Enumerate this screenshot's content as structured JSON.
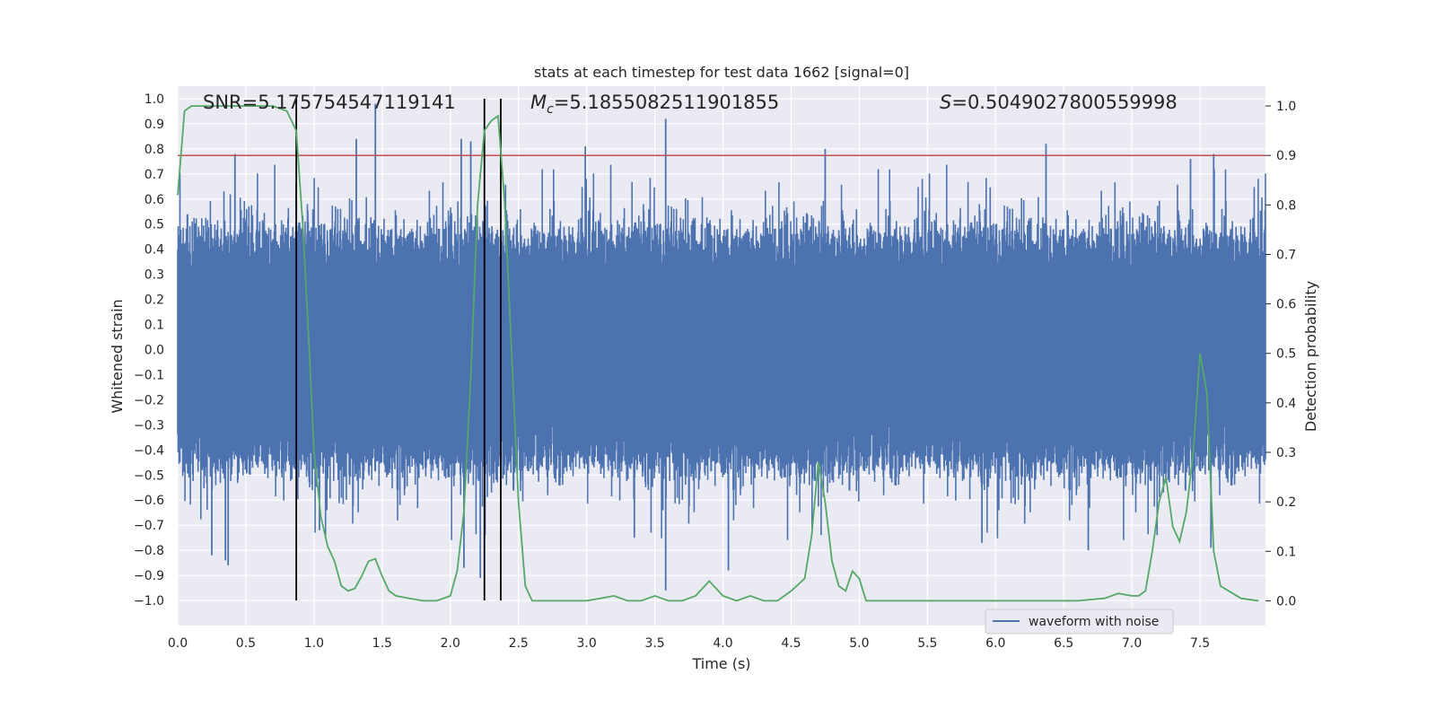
{
  "chart_data": {
    "type": "line",
    "title": "stats at each timestep for test data 1662 [signal=0]",
    "xlabel": "Time (s)",
    "ylabel_left": "Whitened strain",
    "ylabel_right": "Detection probability",
    "xlim": [
      0.0,
      7.98
    ],
    "ylim_left": [
      -1.1,
      1.05
    ],
    "ylim_right": [
      -0.05,
      1.04
    ],
    "x_ticks": [
      0.0,
      0.5,
      1.0,
      1.5,
      2.0,
      2.5,
      3.0,
      3.5,
      4.0,
      4.5,
      5.0,
      5.5,
      6.0,
      6.5,
      7.0,
      7.5
    ],
    "x_tick_labels": [
      "0.0",
      "0.5",
      "1.0",
      "1.5",
      "2.0",
      "2.5",
      "3.0",
      "3.5",
      "4.0",
      "4.5",
      "5.0",
      "5.5",
      "6.0",
      "6.5",
      "7.0",
      "7.5"
    ],
    "y_left_ticks": [
      1.0,
      0.9,
      0.8,
      0.7,
      0.6,
      0.5,
      0.4,
      0.3,
      0.2,
      0.1,
      0.0,
      -0.1,
      -0.2,
      -0.3,
      -0.4,
      -0.5,
      -0.6,
      -0.7,
      -0.8,
      -0.9,
      -1.0
    ],
    "y_left_tick_labels": [
      "1.0",
      "0.9",
      "0.8",
      "0.7",
      "0.6",
      "0.5",
      "0.4",
      "0.3",
      "0.2",
      "0.1",
      "0.0",
      "−0.1",
      "−0.2",
      "−0.3",
      "−0.4",
      "−0.5",
      "−0.6",
      "−0.7",
      "−0.8",
      "−0.9",
      "−1.0"
    ],
    "y_right_ticks": [
      1.0,
      0.9,
      0.8,
      0.7,
      0.6,
      0.5,
      0.4,
      0.3,
      0.2,
      0.1,
      0.0
    ],
    "y_right_tick_labels": [
      "1.0",
      "0.9",
      "0.8",
      "0.7",
      "0.6",
      "0.5",
      "0.4",
      "0.3",
      "0.2",
      "0.1",
      "0.0"
    ],
    "annotations": {
      "snr": "SNR=5.175754547119141",
      "mc_symbol": "M",
      "mc_subscript": "c",
      "mc_value": "=5.1855082511901855",
      "s_symbol": "S",
      "s_value": "=0.5049027800559998"
    },
    "threshold": {
      "axis": "right",
      "value": 0.9
    },
    "vertical_markers": {
      "axis": "left",
      "x": [
        0.87,
        2.25,
        2.37
      ],
      "y_range": [
        -1.0,
        1.0
      ]
    },
    "series": [
      {
        "name": "waveform with noise",
        "axis": "left",
        "kind": "noise",
        "envelope": {
          "typical": 0.42,
          "max_peak": 0.98,
          "min_peak": -0.96
        },
        "spikes": [
          {
            "x": 1.45,
            "y": 0.98
          },
          {
            "x": 3.58,
            "y": 0.92
          },
          {
            "x": 3.58,
            "y": -0.96
          },
          {
            "x": 1.31,
            "y": 0.84
          },
          {
            "x": 6.37,
            "y": 0.82
          },
          {
            "x": 2.08,
            "y": 0.84
          },
          {
            "x": 2.15,
            "y": 0.83
          },
          {
            "x": 2.99,
            "y": 0.81
          },
          {
            "x": 4.75,
            "y": 0.8
          },
          {
            "x": 0.42,
            "y": 0.78
          },
          {
            "x": 7.43,
            "y": 0.76
          },
          {
            "x": 7.6,
            "y": 0.78
          },
          {
            "x": 0.25,
            "y": -0.82
          },
          {
            "x": 0.35,
            "y": -0.84
          },
          {
            "x": 0.37,
            "y": -0.86
          },
          {
            "x": 2.1,
            "y": -0.87
          },
          {
            "x": 2.22,
            "y": -0.91
          },
          {
            "x": 4.04,
            "y": -0.88
          },
          {
            "x": 6.68,
            "y": -0.8
          },
          {
            "x": 7.58,
            "y": -0.79
          },
          {
            "x": 5.9,
            "y": -0.77
          },
          {
            "x": 3.35,
            "y": -0.75
          },
          {
            "x": 1.04,
            "y": -0.72
          }
        ],
        "color": "#4c72b0"
      },
      {
        "name": "detection probability",
        "axis": "right",
        "color": "#55a868",
        "x": [
          0.0,
          0.05,
          0.1,
          0.2,
          0.3,
          0.4,
          0.5,
          0.6,
          0.7,
          0.8,
          0.87,
          0.92,
          0.97,
          1.0,
          1.05,
          1.1,
          1.15,
          1.2,
          1.25,
          1.3,
          1.35,
          1.4,
          1.45,
          1.5,
          1.55,
          1.6,
          1.7,
          1.8,
          1.9,
          2.0,
          2.05,
          2.1,
          2.15,
          2.2,
          2.25,
          2.3,
          2.35,
          2.4,
          2.45,
          2.5,
          2.55,
          2.6,
          2.7,
          2.8,
          2.9,
          3.0,
          3.1,
          3.2,
          3.3,
          3.4,
          3.5,
          3.6,
          3.7,
          3.8,
          3.9,
          4.0,
          4.1,
          4.2,
          4.3,
          4.4,
          4.5,
          4.6,
          4.65,
          4.7,
          4.75,
          4.8,
          4.85,
          4.9,
          4.95,
          5.0,
          5.05,
          5.2,
          5.4,
          5.6,
          5.8,
          6.0,
          6.2,
          6.4,
          6.6,
          6.8,
          6.9,
          7.0,
          7.05,
          7.1,
          7.15,
          7.2,
          7.25,
          7.3,
          7.35,
          7.4,
          7.45,
          7.5,
          7.55,
          7.6,
          7.65,
          7.8,
          7.93
        ],
        "values": [
          0.82,
          0.99,
          1.0,
          1.0,
          1.0,
          1.0,
          1.0,
          1.0,
          1.0,
          0.99,
          0.95,
          0.75,
          0.48,
          0.3,
          0.17,
          0.11,
          0.08,
          0.03,
          0.02,
          0.025,
          0.05,
          0.08,
          0.085,
          0.05,
          0.02,
          0.01,
          0.005,
          0.0,
          0.0,
          0.01,
          0.06,
          0.18,
          0.45,
          0.8,
          0.95,
          0.97,
          0.98,
          0.8,
          0.5,
          0.2,
          0.03,
          0.0,
          0.0,
          0.0,
          0.0,
          0.0,
          0.005,
          0.01,
          0.0,
          0.0,
          0.01,
          0.0,
          0.0,
          0.01,
          0.04,
          0.01,
          0.0,
          0.01,
          0.0,
          0.0,
          0.02,
          0.045,
          0.13,
          0.28,
          0.2,
          0.08,
          0.03,
          0.02,
          0.06,
          0.045,
          0.0,
          0.0,
          0.0,
          0.0,
          0.0,
          0.0,
          0.0,
          0.0,
          0.0,
          0.005,
          0.015,
          0.01,
          0.01,
          0.02,
          0.1,
          0.2,
          0.25,
          0.15,
          0.12,
          0.18,
          0.3,
          0.5,
          0.42,
          0.1,
          0.03,
          0.005,
          0.0
        ]
      }
    ],
    "legend": {
      "location": "lower-right",
      "entries": [
        "waveform with noise"
      ]
    }
  },
  "colors": {
    "axes_bg": "#eaeaf2",
    "grid": "#ffffff",
    "threshold": "#c44e52",
    "markers": "#000000"
  }
}
